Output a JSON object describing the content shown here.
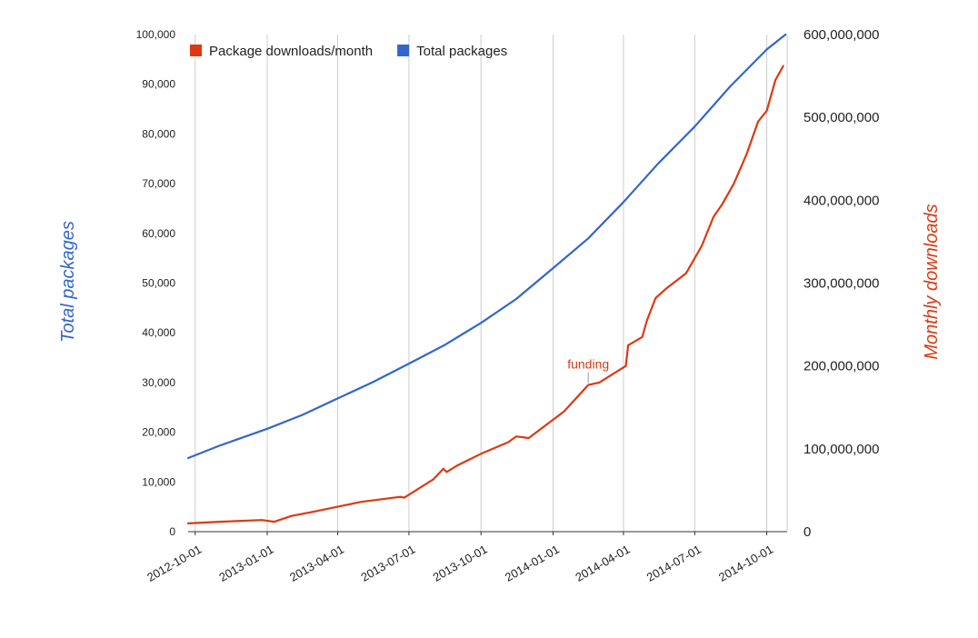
{
  "chart_data": {
    "type": "line",
    "left_axis": {
      "title": "Total packages",
      "min": 0,
      "max": 100000,
      "ticks": [
        "0",
        "10,000",
        "20,000",
        "30,000",
        "40,000",
        "50,000",
        "60,000",
        "70,000",
        "80,000",
        "90,000",
        "100,000"
      ]
    },
    "right_axis": {
      "title": "Monthly downloads",
      "min": 0,
      "max": 600000000,
      "ticks": [
        "0",
        "100,000,000",
        "200,000,000",
        "300,000,000",
        "400,000,000",
        "500,000,000",
        "600,000,000"
      ]
    },
    "x_axis": {
      "min": "2012-09-22",
      "max": "2014-10-27",
      "ticks": [
        "2012-10-01",
        "2013-01-01",
        "2013-04-01",
        "2013-07-01",
        "2013-10-01",
        "2014-01-01",
        "2014-04-01",
        "2014-07-01",
        "2014-10-01"
      ]
    },
    "grid": true,
    "legend": {
      "position": "top-left",
      "items": [
        {
          "label": "Package downloads/month",
          "color": "#dc3912"
        },
        {
          "label": "Total packages",
          "color": "#3366cc"
        }
      ]
    },
    "series": [
      {
        "name": "Package downloads/month",
        "axis": "right",
        "color": "#dc3912",
        "points": [
          [
            "2012-09-22",
            10000000
          ],
          [
            "2012-11-01",
            12000000
          ],
          [
            "2012-12-25",
            14000000
          ],
          [
            "2013-01-10",
            12000000
          ],
          [
            "2013-02-01",
            19000000
          ],
          [
            "2013-03-01",
            24000000
          ],
          [
            "2013-04-01",
            30000000
          ],
          [
            "2013-05-01",
            36000000
          ],
          [
            "2013-06-20",
            42000000
          ],
          [
            "2013-06-25",
            41000000
          ],
          [
            "2013-07-10",
            50000000
          ],
          [
            "2013-08-01",
            63000000
          ],
          [
            "2013-08-14",
            76000000
          ],
          [
            "2013-08-18",
            72000000
          ],
          [
            "2013-09-01",
            80000000
          ],
          [
            "2013-10-01",
            94000000
          ],
          [
            "2013-11-05",
            108000000
          ],
          [
            "2013-11-15",
            115000000
          ],
          [
            "2013-12-01",
            113000000
          ],
          [
            "2014-01-15",
            145000000
          ],
          [
            "2014-02-15",
            177000000
          ],
          [
            "2014-03-01",
            180000000
          ],
          [
            "2014-04-04",
            200000000
          ],
          [
            "2014-04-07",
            225000000
          ],
          [
            "2014-04-25",
            235000000
          ],
          [
            "2014-05-01",
            255000000
          ],
          [
            "2014-05-12",
            282000000
          ],
          [
            "2014-05-25",
            293000000
          ],
          [
            "2014-06-20",
            312000000
          ],
          [
            "2014-07-10",
            345000000
          ],
          [
            "2014-07-25",
            380000000
          ],
          [
            "2014-08-05",
            395000000
          ],
          [
            "2014-08-20",
            420000000
          ],
          [
            "2014-09-05",
            455000000
          ],
          [
            "2014-09-20",
            495000000
          ],
          [
            "2014-10-01",
            508000000
          ],
          [
            "2014-10-12",
            545000000
          ],
          [
            "2014-10-22",
            562000000
          ]
        ]
      },
      {
        "name": "Total packages",
        "axis": "left",
        "color": "#3366cc",
        "points": [
          [
            "2012-09-22",
            14800
          ],
          [
            "2012-11-01",
            17300
          ],
          [
            "2013-01-01",
            20700
          ],
          [
            "2013-02-15",
            23500
          ],
          [
            "2013-04-01",
            26800
          ],
          [
            "2013-05-15",
            30000
          ],
          [
            "2013-07-01",
            33800
          ],
          [
            "2013-08-15",
            37500
          ],
          [
            "2013-10-01",
            42000
          ],
          [
            "2013-11-15",
            46800
          ],
          [
            "2014-01-01",
            53000
          ],
          [
            "2014-02-15",
            59000
          ],
          [
            "2014-04-01",
            66300
          ],
          [
            "2014-05-15",
            74000
          ],
          [
            "2014-07-01",
            81500
          ],
          [
            "2014-08-15",
            89500
          ],
          [
            "2014-10-01",
            97000
          ],
          [
            "2014-10-25",
            100000
          ]
        ]
      }
    ],
    "annotations": [
      {
        "text": "funding",
        "date": "2014-02-15",
        "value": 177000000,
        "axis": "right",
        "color": "#dc3912"
      }
    ]
  }
}
